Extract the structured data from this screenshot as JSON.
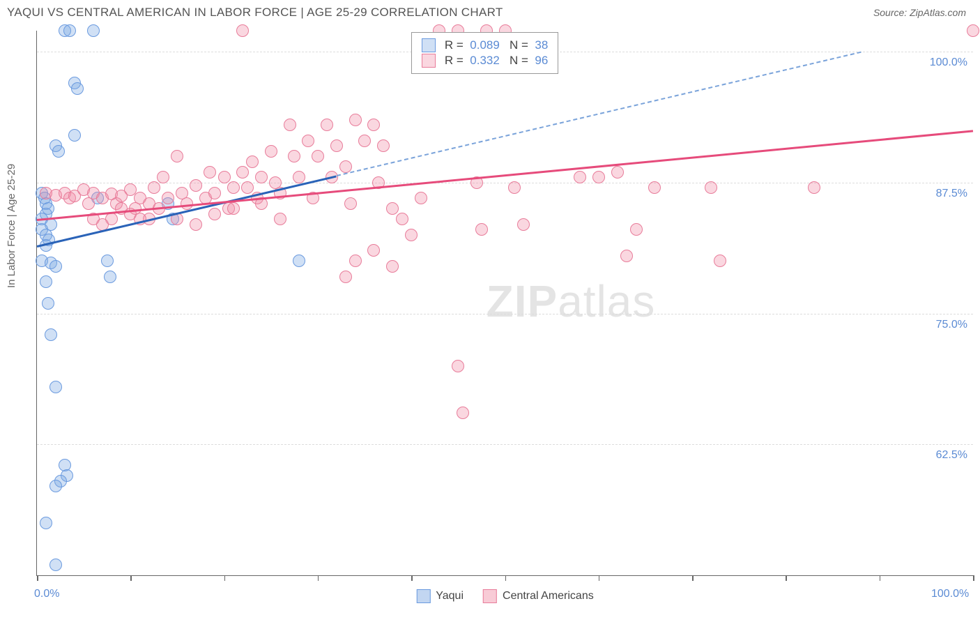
{
  "title": "YAQUI VS CENTRAL AMERICAN IN LABOR FORCE | AGE 25-29 CORRELATION CHART",
  "source": "Source: ZipAtlas.com",
  "ylabel": "In Labor Force | Age 25-29",
  "watermark_a": "ZIP",
  "watermark_b": "atlas",
  "chart": {
    "type": "scatter",
    "background_color": "#ffffff",
    "grid_color": "#dcdcdc",
    "axis_color": "#666666",
    "xlim": [
      0,
      100
    ],
    "ylim": [
      50,
      102
    ],
    "x_ticks": [
      0,
      10,
      20,
      30,
      40,
      50,
      60,
      70,
      80,
      90,
      100
    ],
    "x_tick_labels": {
      "0": "0.0%",
      "100": "100.0%"
    },
    "y_gridlines": [
      62.5,
      75.0,
      87.5,
      100.0
    ],
    "y_tick_labels": [
      "62.5%",
      "75.0%",
      "87.5%",
      "100.0%"
    ],
    "tick_label_color": "#5b8bd4",
    "tick_label_fontsize": 16,
    "point_radius": 9,
    "series": [
      {
        "name": "Yaqui",
        "color_fill": "rgba(120,165,225,0.35)",
        "color_stroke": "#6a9adf",
        "trend_color": "#2a63b8",
        "trend_dash_color": "#7aa3da",
        "R": "0.089",
        "N": "38",
        "trend_solid": {
          "x1": 0,
          "y1": 81.5,
          "x2": 32,
          "y2": 88.2
        },
        "trend_dash": {
          "x1": 32,
          "y1": 88.2,
          "x2": 88,
          "y2": 100
        },
        "points": [
          [
            0.5,
            86.5
          ],
          [
            0.8,
            86.0
          ],
          [
            1.0,
            85.5
          ],
          [
            1.2,
            85.0
          ],
          [
            1.0,
            84.5
          ],
          [
            0.5,
            84.0
          ],
          [
            1.5,
            83.5
          ],
          [
            0.5,
            83.0
          ],
          [
            1.0,
            82.5
          ],
          [
            1.3,
            82.0
          ],
          [
            1.0,
            81.5
          ],
          [
            0.5,
            80.0
          ],
          [
            1.5,
            79.8
          ],
          [
            2.0,
            79.5
          ],
          [
            3.0,
            102.0
          ],
          [
            3.5,
            102.0
          ],
          [
            6.0,
            102.0
          ],
          [
            4.0,
            97.0
          ],
          [
            4.3,
            96.5
          ],
          [
            4.0,
            92.0
          ],
          [
            2.0,
            91.0
          ],
          [
            2.3,
            90.5
          ],
          [
            7.5,
            80.0
          ],
          [
            7.8,
            78.5
          ],
          [
            1.0,
            78.0
          ],
          [
            1.2,
            76.0
          ],
          [
            1.5,
            73.0
          ],
          [
            2.0,
            68.0
          ],
          [
            3.0,
            60.5
          ],
          [
            3.2,
            59.5
          ],
          [
            2.5,
            59.0
          ],
          [
            2.0,
            58.5
          ],
          [
            1.0,
            55.0
          ],
          [
            2.0,
            51.0
          ],
          [
            14.0,
            85.5
          ],
          [
            14.5,
            84.0
          ],
          [
            28.0,
            80.0
          ],
          [
            6.5,
            86.0
          ]
        ]
      },
      {
        "name": "Central Americans",
        "color_fill": "rgba(240,140,165,0.35)",
        "color_stroke": "#e87c9a",
        "trend_color": "#e64b7b",
        "R": "0.332",
        "N": "96",
        "trend_solid": {
          "x1": 0,
          "y1": 84.0,
          "x2": 100,
          "y2": 92.5
        },
        "points": [
          [
            1,
            86.5
          ],
          [
            2,
            86.3
          ],
          [
            3,
            86.5
          ],
          [
            3.5,
            86.0
          ],
          [
            4,
            86.2
          ],
          [
            5,
            86.8
          ],
          [
            5.5,
            85.5
          ],
          [
            6,
            86.5
          ],
          [
            7,
            86.0
          ],
          [
            8,
            86.4
          ],
          [
            8.5,
            85.5
          ],
          [
            9,
            86.2
          ],
          [
            10,
            86.8
          ],
          [
            10.5,
            85.0
          ],
          [
            11,
            86.0
          ],
          [
            12,
            85.5
          ],
          [
            12.5,
            87.0
          ],
          [
            13,
            85.0
          ],
          [
            13.5,
            88.0
          ],
          [
            14,
            86.0
          ],
          [
            15,
            90.0
          ],
          [
            15.5,
            86.5
          ],
          [
            16,
            85.5
          ],
          [
            17,
            87.2
          ],
          [
            18,
            86.0
          ],
          [
            18.5,
            88.5
          ],
          [
            19,
            86.5
          ],
          [
            20,
            88.0
          ],
          [
            20.5,
            85.0
          ],
          [
            21,
            87.0
          ],
          [
            22,
            88.5
          ],
          [
            22.5,
            87.0
          ],
          [
            23,
            89.5
          ],
          [
            23.5,
            86.0
          ],
          [
            24,
            88.0
          ],
          [
            25,
            90.5
          ],
          [
            25.5,
            87.5
          ],
          [
            26,
            84.0
          ],
          [
            27,
            93.0
          ],
          [
            27.5,
            90.0
          ],
          [
            28,
            88.0
          ],
          [
            29,
            91.5
          ],
          [
            29.5,
            86.0
          ],
          [
            30,
            90.0
          ],
          [
            31,
            93.0
          ],
          [
            31.5,
            88.0
          ],
          [
            32,
            91.0
          ],
          [
            33,
            89.0
          ],
          [
            33.5,
            85.5
          ],
          [
            34,
            93.5
          ],
          [
            35,
            91.5
          ],
          [
            36,
            93.0
          ],
          [
            36.5,
            87.5
          ],
          [
            37,
            91.0
          ],
          [
            38,
            85.0
          ],
          [
            39,
            84.0
          ],
          [
            40,
            82.5
          ],
          [
            41,
            86.0
          ],
          [
            33,
            78.5
          ],
          [
            34,
            80.0
          ],
          [
            36,
            81.0
          ],
          [
            38,
            79.5
          ],
          [
            47,
            87.5
          ],
          [
            47.5,
            83.0
          ],
          [
            48,
            102.0
          ],
          [
            50,
            102.0
          ],
          [
            51,
            87.0
          ],
          [
            52,
            83.5
          ],
          [
            45,
            70.0
          ],
          [
            45.5,
            65.5
          ],
          [
            58,
            88.0
          ],
          [
            60,
            88.0
          ],
          [
            62,
            88.5
          ],
          [
            64,
            83.0
          ],
          [
            66,
            87.0
          ],
          [
            63,
            80.5
          ],
          [
            72,
            87.0
          ],
          [
            73,
            80.0
          ],
          [
            83,
            87.0
          ],
          [
            100,
            102.0
          ],
          [
            43,
            102.0
          ],
          [
            45,
            102.0
          ],
          [
            22,
            102.0
          ],
          [
            15,
            84.0
          ],
          [
            17,
            83.5
          ],
          [
            12,
            84.0
          ],
          [
            10,
            84.5
          ],
          [
            8,
            84.0
          ],
          [
            6,
            84.0
          ],
          [
            7,
            83.5
          ],
          [
            9,
            85.0
          ],
          [
            11,
            84.0
          ],
          [
            19,
            84.5
          ],
          [
            21,
            85.0
          ],
          [
            24,
            85.5
          ],
          [
            26,
            86.5
          ]
        ]
      }
    ]
  },
  "legend_top": {
    "rows": [
      {
        "swatch_fill": "rgba(120,165,225,0.35)",
        "swatch_stroke": "#6a9adf",
        "r_label": "R =",
        "r_val": "0.089",
        "n_label": "N =",
        "n_val": "38"
      },
      {
        "swatch_fill": "rgba(240,140,165,0.35)",
        "swatch_stroke": "#e87c9a",
        "r_label": "R =",
        "r_val": "0.332",
        "n_label": "N =",
        "n_val": "96"
      }
    ]
  },
  "legend_bottom": [
    {
      "swatch_fill": "rgba(120,165,225,0.45)",
      "swatch_stroke": "#6a9adf",
      "label": "Yaqui"
    },
    {
      "swatch_fill": "rgba(240,140,165,0.45)",
      "swatch_stroke": "#e87c9a",
      "label": "Central Americans"
    }
  ]
}
